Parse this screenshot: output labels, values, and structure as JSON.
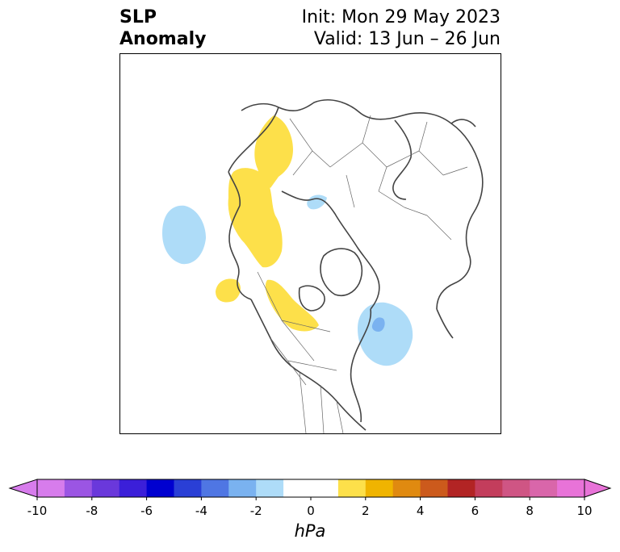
{
  "title": {
    "left_line1": "SLP",
    "left_line2": "Anomaly",
    "init": "Init: Mon 29 May 2023",
    "valid": "Valid: 13 Jun – 26 Jun"
  },
  "map": {
    "projection": "north-polar-stereographic",
    "anomaly_features": [
      {
        "region": "Eastern Siberia / Chukotka",
        "sign": "positive",
        "color": "#fde04a"
      },
      {
        "region": "Beaufort Sea / Canadian Archipelago",
        "sign": "positive",
        "color": "#fde04a"
      },
      {
        "region": "Gulf of Alaska",
        "sign": "positive",
        "color": "#fde04a"
      },
      {
        "region": "Western Canada",
        "sign": "positive",
        "color": "#fde04a"
      },
      {
        "region": "North Pacific",
        "sign": "negative",
        "color": "#aedcf8"
      },
      {
        "region": "Kara Sea",
        "sign": "negative",
        "color": "#aedcf8"
      },
      {
        "region": "Labrador Sea",
        "sign": "negative",
        "color": "#aedcf8"
      },
      {
        "region": "Labrador coast",
        "sign": "negative",
        "color": "#7ab2f0"
      }
    ]
  },
  "colorbar": {
    "label": "hPa",
    "ticks": [
      "-10",
      "-8",
      "-6",
      "-4",
      "-2",
      "0",
      "2",
      "4",
      "6",
      "8",
      "10"
    ],
    "range": [
      -10,
      10
    ],
    "colors": [
      "#d77cec",
      "#9b55e3",
      "#6a38db",
      "#3b1fd9",
      "#0000d0",
      "#2a3fd6",
      "#4f76e3",
      "#7ab2f0",
      "#aedcf8",
      "#ffffff",
      "#ffffff",
      "#fde04a",
      "#f0b400",
      "#e08a10",
      "#cc5a1c",
      "#b22424",
      "#c33d5c",
      "#cf5584",
      "#d966aa",
      "#e873d8"
    ],
    "extend": "both"
  }
}
